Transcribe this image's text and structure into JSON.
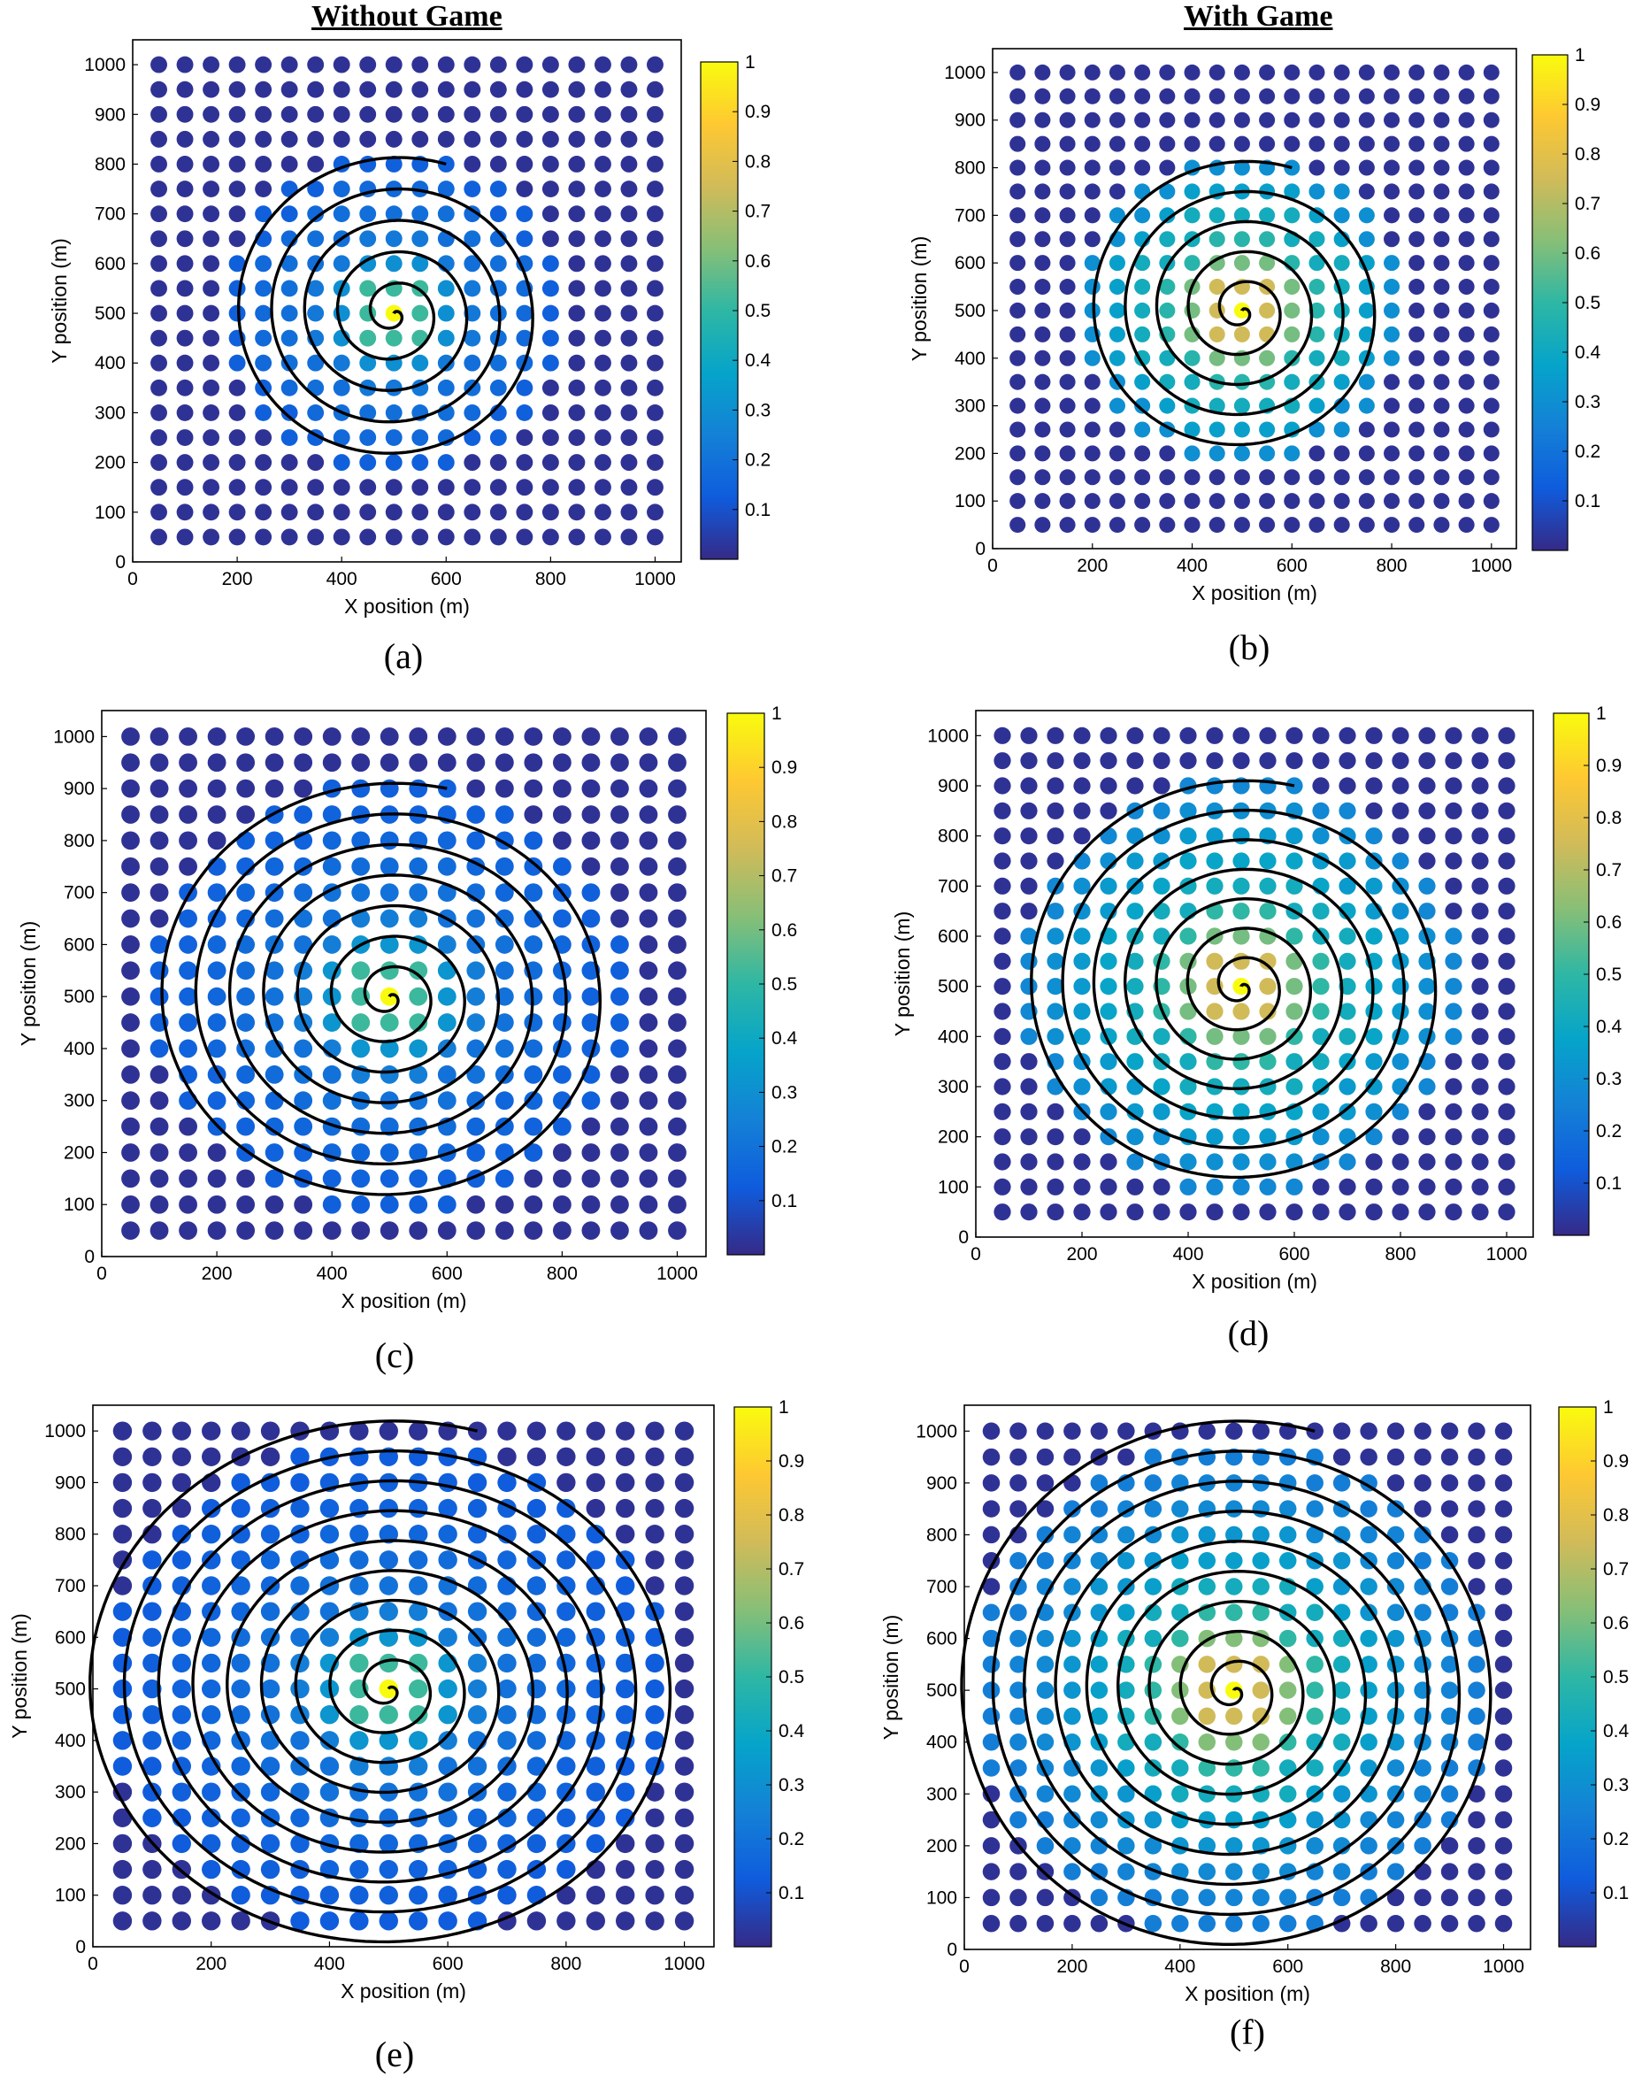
{
  "headers": {
    "left": "Without Game",
    "right": "With Game"
  },
  "colorbar": {
    "ticks": [
      0.1,
      0.2,
      0.3,
      0.4,
      0.5,
      0.6,
      0.7,
      0.8,
      0.9,
      1
    ],
    "colormap": [
      "#352a87",
      "#0f5cdd",
      "#1481d6",
      "#06a4ca",
      "#2eb7a4",
      "#87bf77",
      "#d1bb59",
      "#fec832",
      "#f9fb0e"
    ]
  },
  "chart_data": [
    {
      "type": "scatter",
      "caption": "(a)",
      "xlabel": "X position (m)",
      "ylabel": "Y position (m)",
      "xlim": [
        0,
        1050
      ],
      "ylim": [
        0,
        1050
      ],
      "xticks": [
        0,
        200,
        400,
        600,
        800,
        1000
      ],
      "yticks": [
        0,
        100,
        200,
        300,
        400,
        500,
        600,
        700,
        800,
        900,
        1000
      ],
      "grid": false,
      "colorbar": "right",
      "sensor_grid": {
        "start": 50,
        "step": 50,
        "count": 20
      },
      "center": [
        500,
        500
      ],
      "spiral": {
        "start": [
          600,
          800
        ],
        "turns": 5
      },
      "value_field": {
        "rings": [
          1.0,
          0.52,
          0.3,
          0.22,
          0.19,
          0.17,
          0.14
        ],
        "background": 0.02,
        "extent": 330
      }
    },
    {
      "type": "scatter",
      "caption": "(b)",
      "xlabel": "X position (m)",
      "ylabel": "Y position (m)",
      "xlim": [
        0,
        1050
      ],
      "ylim": [
        0,
        1050
      ],
      "xticks": [
        0,
        200,
        400,
        600,
        800,
        1000
      ],
      "yticks": [
        0,
        100,
        200,
        300,
        400,
        500,
        600,
        700,
        800,
        900,
        1000
      ],
      "grid": false,
      "colorbar": "right",
      "sensor_grid": {
        "start": 50,
        "step": 50,
        "count": 20
      },
      "center": [
        500,
        500
      ],
      "spiral": {
        "start": [
          600,
          800
        ],
        "turns": 5
      },
      "value_field": {
        "rings": [
          1.0,
          0.75,
          0.6,
          0.48,
          0.42,
          0.36,
          0.3,
          0.26
        ],
        "background": 0.02,
        "extent": 330
      }
    },
    {
      "type": "scatter",
      "caption": "(c)",
      "xlabel": "X position (m)",
      "ylabel": "Y position (m)",
      "xlim": [
        0,
        1050
      ],
      "ylim": [
        0,
        1050
      ],
      "xticks": [
        0,
        200,
        400,
        600,
        800,
        1000
      ],
      "yticks": [
        0,
        100,
        200,
        300,
        400,
        500,
        600,
        700,
        800,
        900,
        1000
      ],
      "grid": false,
      "colorbar": "right",
      "sensor_grid": {
        "start": 50,
        "step": 50,
        "count": 20
      },
      "center": [
        500,
        500
      ],
      "spiral": {
        "start": [
          600,
          900
        ],
        "turns": 7
      },
      "value_field": {
        "rings": [
          1.0,
          0.52,
          0.32,
          0.24,
          0.2,
          0.18,
          0.16,
          0.15,
          0.14,
          0.13
        ],
        "background": 0.02,
        "extent": 420
      }
    },
    {
      "type": "scatter",
      "caption": "(d)",
      "xlabel": "X position (m)",
      "ylabel": "Y position (m)",
      "xlim": [
        0,
        1050
      ],
      "ylim": [
        0,
        1050
      ],
      "xticks": [
        0,
        200,
        400,
        600,
        800,
        1000
      ],
      "yticks": [
        0,
        100,
        200,
        300,
        400,
        500,
        600,
        700,
        800,
        900,
        1000
      ],
      "grid": false,
      "colorbar": "right",
      "sensor_grid": {
        "start": 50,
        "step": 50,
        "count": 20
      },
      "center": [
        500,
        500
      ],
      "spiral": {
        "start": [
          600,
          900
        ],
        "turns": 7
      },
      "value_field": {
        "rings": [
          1.0,
          0.75,
          0.6,
          0.5,
          0.42,
          0.38,
          0.34,
          0.3,
          0.27,
          0.24
        ],
        "background": 0.02,
        "extent": 420
      }
    },
    {
      "type": "scatter",
      "caption": "(e)",
      "xlabel": "X position (m)",
      "ylabel": "Y position (m)",
      "xlim": [
        0,
        1050
      ],
      "ylim": [
        0,
        1050
      ],
      "xticks": [
        0,
        200,
        400,
        600,
        800,
        1000
      ],
      "yticks": [
        0,
        100,
        200,
        300,
        400,
        500,
        600,
        700,
        800,
        900,
        1000
      ],
      "grid": false,
      "colorbar": "right",
      "sensor_grid": {
        "start": 50,
        "step": 50,
        "count": 20
      },
      "center": [
        500,
        500
      ],
      "spiral": {
        "start": [
          650,
          1000
        ],
        "turns": 9
      },
      "value_field": {
        "rings": [
          1.0,
          0.52,
          0.32,
          0.24,
          0.2,
          0.18,
          0.16,
          0.15,
          0.14,
          0.13,
          0.12,
          0.11
        ],
        "background": 0.02,
        "extent": 480
      }
    },
    {
      "type": "scatter",
      "caption": "(f)",
      "xlabel": "X position (m)",
      "ylabel": "Y position (m)",
      "xlim": [
        0,
        1050
      ],
      "ylim": [
        0,
        1050
      ],
      "xticks": [
        0,
        200,
        400,
        600,
        800,
        1000
      ],
      "yticks": [
        0,
        100,
        200,
        300,
        400,
        500,
        600,
        700,
        800,
        900,
        1000
      ],
      "grid": false,
      "colorbar": "right",
      "sensor_grid": {
        "start": 50,
        "step": 50,
        "count": 20
      },
      "center": [
        500,
        500
      ],
      "spiral": {
        "start": [
          650,
          1000
        ],
        "turns": 9
      },
      "value_field": {
        "rings": [
          1.0,
          0.75,
          0.62,
          0.5,
          0.42,
          0.36,
          0.32,
          0.28,
          0.26,
          0.24,
          0.22,
          0.2
        ],
        "background": 0.02,
        "extent": 480
      }
    }
  ]
}
